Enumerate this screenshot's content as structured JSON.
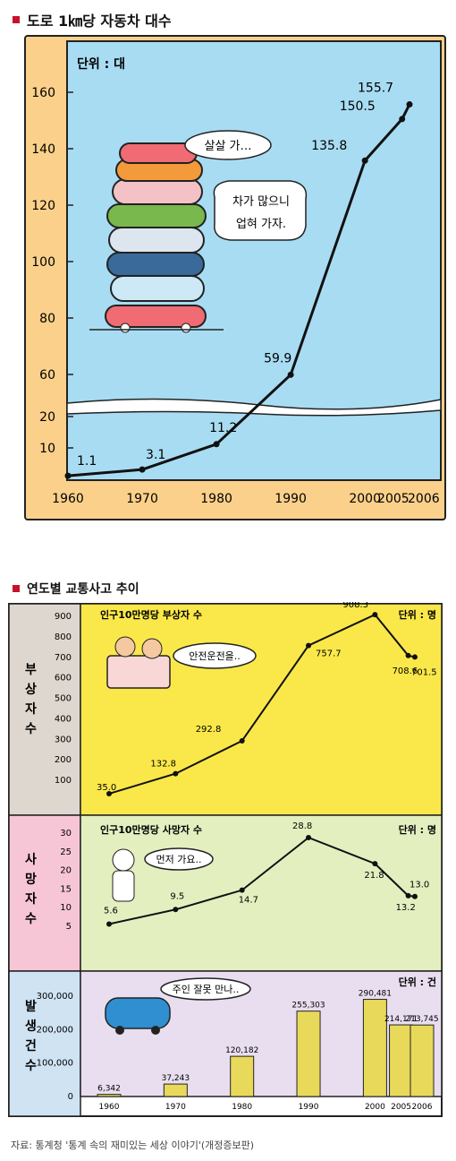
{
  "colors": {
    "frame1": "#fbd08a",
    "plot1": "#a8dcf3",
    "band_inj": "#fae84a",
    "band_death": "#e4efc0",
    "band_acc": "#e8def0",
    "side_inj": "#ddd7cf",
    "side_death": "#f7c6d6",
    "side_acc": "#cfe3f3",
    "bar": "#e8d95a",
    "line": "#111111",
    "accent_square": "#c8102e"
  },
  "chart_data": [
    {
      "type": "line",
      "title": "도로 1㎞당 자동차 대수",
      "unit_label": "단위 : 대",
      "x": [
        "1960",
        "1970",
        "1980",
        "1990",
        "2000",
        "2005",
        "2006"
      ],
      "y": [
        1.1,
        3.1,
        11.2,
        59.9,
        135.8,
        150.5,
        155.7
      ],
      "value_labels": [
        "1.1",
        "3.1",
        "11.2",
        "59.9",
        "135.8",
        "150.5",
        "155.7"
      ],
      "y_ticks": [
        "10",
        "20",
        "60",
        "80",
        "100",
        "120",
        "140",
        "160"
      ],
      "axis_break": true,
      "illustration_bubbles": [
        "살살 가…",
        "차가 많으니",
        "업혀 가자."
      ]
    },
    {
      "type": "line",
      "side_label": "부상자수",
      "subtitle": "인구10만명당 부상자 수",
      "unit_label": "단위 : 명",
      "x": [
        "1960",
        "1970",
        "1980",
        "1990",
        "2000",
        "2005",
        "2006"
      ],
      "y": [
        35.0,
        132.8,
        292.8,
        757.7,
        908.3,
        708.6,
        701.5
      ],
      "value_labels": [
        "35.0",
        "132.8",
        "292.8",
        "757.7",
        "908.3",
        "708.6",
        "701.5"
      ],
      "y_ticks": [
        "100",
        "200",
        "300",
        "400",
        "500",
        "600",
        "700",
        "800",
        "900"
      ],
      "illustration_bubble": "안전운전을.."
    },
    {
      "type": "line",
      "side_label": "사망자수",
      "subtitle": "인구10만명당 사망자 수",
      "unit_label": "단위 : 명",
      "x": [
        "1960",
        "1970",
        "1980",
        "1990",
        "2000",
        "2005",
        "2006"
      ],
      "y": [
        5.6,
        9.5,
        14.7,
        28.8,
        21.8,
        13.2,
        13.0
      ],
      "value_labels": [
        "5.6",
        "9.5",
        "14.7",
        "28.8",
        "21.8",
        "13.2",
        "13.0"
      ],
      "y_ticks": [
        "5",
        "10",
        "15",
        "20",
        "25",
        "30"
      ],
      "illustration_bubble": "먼저 가요.."
    },
    {
      "type": "bar",
      "side_label": "발생건수",
      "unit_label": "단위 : 건",
      "categories": [
        "1960",
        "1970",
        "1980",
        "1990",
        "2000",
        "2005",
        "2006"
      ],
      "values": [
        6342,
        37243,
        120182,
        255303,
        290481,
        214171,
        213745
      ],
      "value_labels": [
        "6,342",
        "37,243",
        "120,182",
        "255,303",
        "290,481",
        "214,171",
        "213,745"
      ],
      "y_ticks": [
        "0",
        "100,000",
        "200,000",
        "300,000"
      ],
      "illustration_bubble": "주인 잘못 만나.."
    }
  ],
  "source": "자료: 통계청 '통계 속의 재미있는 세상 이야기'(개정증보판)"
}
